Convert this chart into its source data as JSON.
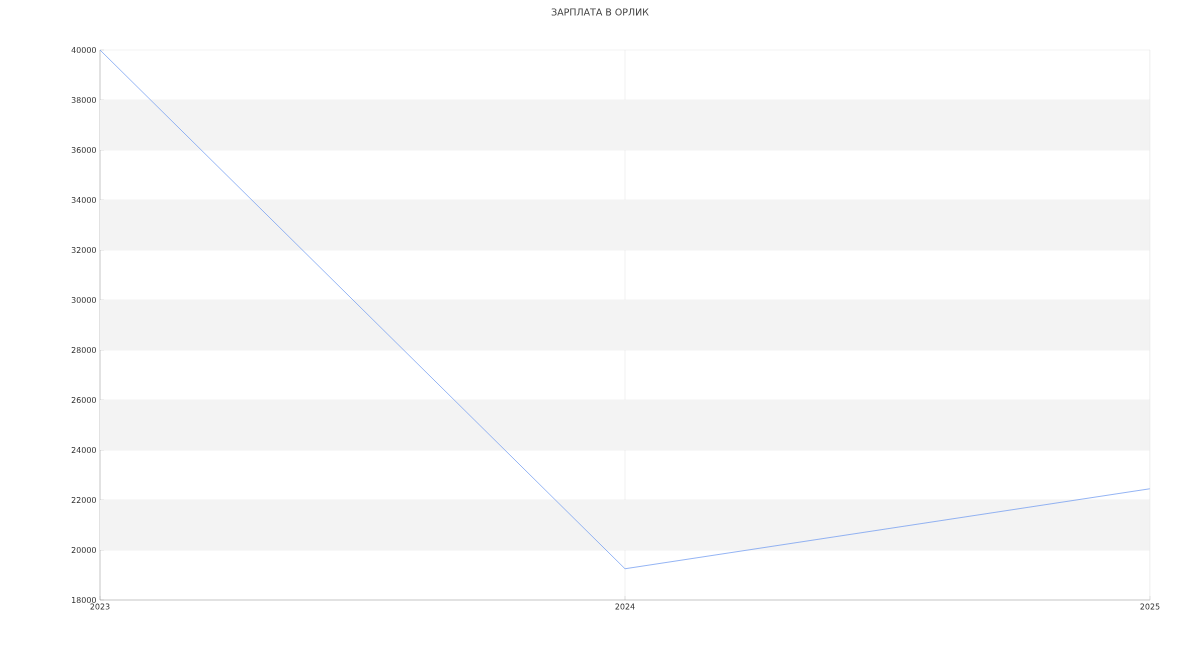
{
  "chart_data": {
    "type": "line",
    "title": "ЗАРПЛАТА В ОРЛИК",
    "x": [
      2023,
      2024,
      2025
    ],
    "series": [
      {
        "color": "#6f9af0",
        "values": [
          40000,
          19250,
          22450
        ]
      }
    ],
    "xlim": [
      2023,
      2025
    ],
    "xticks": [
      2023,
      2024,
      2025
    ],
    "ylim": [
      18000,
      40000
    ],
    "yticks": [
      18000,
      20000,
      22000,
      24000,
      26000,
      28000,
      30000,
      32000,
      34000,
      36000,
      38000,
      40000
    ],
    "grid": true,
    "marker": "none",
    "line_style": "solid",
    "bands": [
      {
        "axis": "y",
        "from": 20000,
        "to": 22000,
        "color": "#f3f3f3"
      },
      {
        "axis": "y",
        "from": 24000,
        "to": 26000,
        "color": "#f3f3f3"
      },
      {
        "axis": "y",
        "from": 28000,
        "to": 30000,
        "color": "#f3f3f3"
      },
      {
        "axis": "y",
        "from": 32000,
        "to": 34000,
        "color": "#f3f3f3"
      },
      {
        "axis": "y",
        "from": 36000,
        "to": 38000,
        "color": "#f3f3f3"
      }
    ]
  }
}
